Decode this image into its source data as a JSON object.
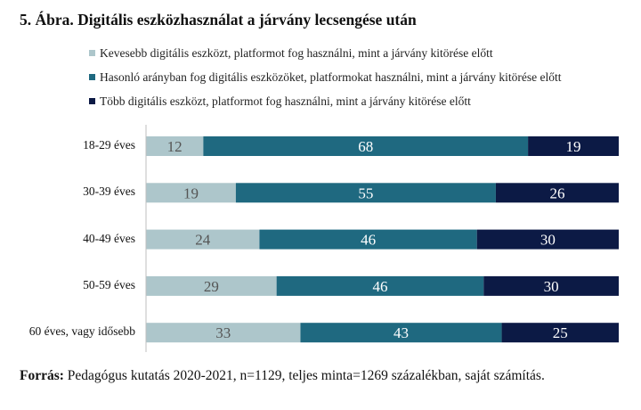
{
  "chart_data": {
    "type": "bar",
    "orientation": "horizontal",
    "stacked": true,
    "title": "5. Ábra. Digitális eszközhasználat a járvány lecsengése után",
    "categories": [
      "18-29 éves",
      "30-39 éves",
      "40-49 éves",
      "50-59 éves",
      "60 éves, vagy idősebb"
    ],
    "series": [
      {
        "name": "Kevesebb digitális eszközt, platformot fog használni, mint a járvány kitörése előtt",
        "color": "#adc6cb",
        "label_color": "#555555",
        "values": [
          12,
          19,
          24,
          29,
          33
        ]
      },
      {
        "name": "Hasonló arányban fog digitális eszközöket, platformokat használni, mint a járvány kitörése előtt",
        "color": "#1f6980",
        "label_color": "#ffffff",
        "values": [
          68,
          55,
          46,
          46,
          43
        ]
      },
      {
        "name": "Több digitális eszközt, platformot fog használni, mint a járvány kitörése előtt",
        "color": "#0c1a45",
        "label_color": "#ffffff",
        "values": [
          19,
          26,
          30,
          30,
          25
        ]
      }
    ],
    "xlim": [
      0,
      100
    ],
    "xlabel": "",
    "ylabel": "",
    "legend_position": "top-left",
    "grid": false
  },
  "source": {
    "label": "Forrás:",
    "text": "Pedagógus kutatás 2020-2021, n=1129, teljes minta=1269 százalékban, saját számítás."
  }
}
